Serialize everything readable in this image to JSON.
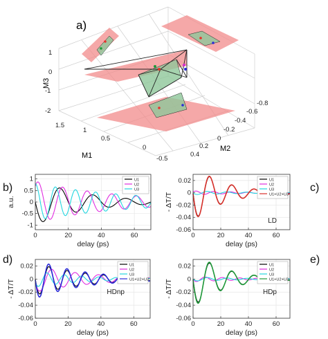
{
  "chart_data": [
    {
      "id": "a",
      "panel_label": "a)",
      "type": "3d-scatter",
      "axes": {
        "M1": {
          "label": "M1",
          "ticks": [
            "1.5",
            "1",
            "0.5",
            "0",
            "-0.5"
          ]
        },
        "M2": {
          "label": "M2",
          "ticks": [
            "-0.8",
            "-0.6",
            "-0.4",
            "-0.2",
            "0",
            "0.2",
            "0.4"
          ]
        },
        "M3": {
          "label": "M3",
          "ticks": [
            "1",
            "0",
            "-1",
            "-2"
          ]
        }
      },
      "plane_colors": {
        "plane_red": "#f28b8b",
        "plane_green": "#8fc79a",
        "edges": "#222222"
      },
      "point_colors": [
        "#e8322b",
        "#1f9a3a",
        "#2a2ad8",
        "#d12bd1"
      ]
    },
    {
      "id": "b",
      "panel_label": "b)",
      "type": "line",
      "xlabel": "delay (ps)",
      "ylabel": "a.u.",
      "xlim": [
        0,
        70
      ],
      "ylim": [
        -1.2,
        1.2
      ],
      "xticks": [
        0,
        20,
        40,
        60
      ],
      "yticks": [
        1,
        0.5,
        0,
        -0.5,
        -1
      ],
      "annotation": "",
      "legend": "top-right",
      "series": [
        {
          "name": "U1",
          "color": "#000000",
          "amp": 1.0,
          "freq": 0.05,
          "phase": 1.571,
          "decay": 30
        },
        {
          "name": "U2",
          "color": "#e02ce0",
          "amp": 0.9,
          "freq": 0.067,
          "phase": -0.7,
          "decay": 50
        },
        {
          "name": "U3",
          "color": "#22d6e0",
          "amp": 0.8,
          "freq": 0.082,
          "phase": 0.0,
          "decay": 60
        }
      ]
    },
    {
      "id": "c",
      "panel_label": "c)",
      "type": "line",
      "xlabel": "delay (ps)",
      "ylabel": "- ΔT/T",
      "xlim": [
        0,
        70
      ],
      "ylim": [
        -0.06,
        0.03
      ],
      "xticks": [
        0,
        20,
        40,
        60
      ],
      "yticks": [
        0.02,
        0,
        -0.02,
        -0.04,
        -0.06
      ],
      "annotation": "LD",
      "legend": "top-right",
      "series": [
        {
          "name": "U1",
          "color": "#000000",
          "amp": -0.045,
          "freq": 0.062,
          "phase": 0.0,
          "decay": 22
        },
        {
          "name": "U2",
          "color": "#e02ce0",
          "amp": 0.003,
          "freq": 0.08,
          "phase": 0.5,
          "decay": 40
        },
        {
          "name": "U3",
          "color": "#22d6e0",
          "amp": -0.003,
          "freq": 0.07,
          "phase": 0.2,
          "decay": 40
        },
        {
          "name": "U1+U2+U3",
          "color": "#d8302a",
          "amp": -0.046,
          "freq": 0.062,
          "phase": 0.03,
          "decay": 22
        }
      ]
    },
    {
      "id": "d",
      "panel_label": "d)",
      "type": "line",
      "xlabel": "delay (ps)",
      "ylabel": "- ΔT/T",
      "xlim": [
        0,
        70
      ],
      "ylim": [
        -0.06,
        0.03
      ],
      "xticks": [
        0,
        20,
        40,
        60
      ],
      "yticks": [
        0.02,
        0,
        -0.02,
        -0.04,
        -0.06
      ],
      "annotation": "HDnp",
      "legend": "top-right",
      "series": [
        {
          "name": "U1",
          "color": "#000000",
          "amp": -0.025,
          "freq": 0.09,
          "phase": 0.0,
          "decay": 30
        },
        {
          "name": "U2",
          "color": "#e02ce0",
          "amp": -0.02,
          "freq": 0.07,
          "phase": 0.3,
          "decay": 35
        },
        {
          "name": "U3",
          "color": "#22d6e0",
          "amp": -0.012,
          "freq": 0.095,
          "phase": 0.4,
          "decay": 30
        },
        {
          "name": "U1+U2+U3",
          "color": "#2a2ad8",
          "amp": -0.03,
          "freq": 0.09,
          "phase": 0.05,
          "decay": 30
        }
      ]
    },
    {
      "id": "e",
      "panel_label": "e)",
      "type": "line",
      "xlabel": "delay (ps)",
      "ylabel": "- ΔT/T",
      "xlim": [
        0,
        70
      ],
      "ylim": [
        -0.06,
        0.03
      ],
      "xticks": [
        0,
        20,
        40,
        60
      ],
      "yticks": [
        0.02,
        0,
        -0.02,
        -0.04,
        -0.06
      ],
      "annotation": "HDp",
      "legend": "top-right",
      "series": [
        {
          "name": "U1",
          "color": "#000000",
          "amp": -0.042,
          "freq": 0.062,
          "phase": 0.0,
          "decay": 22
        },
        {
          "name": "U2",
          "color": "#e02ce0",
          "amp": -0.004,
          "freq": 0.08,
          "phase": 0.3,
          "decay": 40
        },
        {
          "name": "U3",
          "color": "#22d6e0",
          "amp": -0.003,
          "freq": 0.07,
          "phase": 0.1,
          "decay": 40
        },
        {
          "name": "U1+U2+U3",
          "color": "#1f9a3a",
          "amp": -0.044,
          "freq": 0.062,
          "phase": 0.03,
          "decay": 22
        }
      ]
    }
  ]
}
